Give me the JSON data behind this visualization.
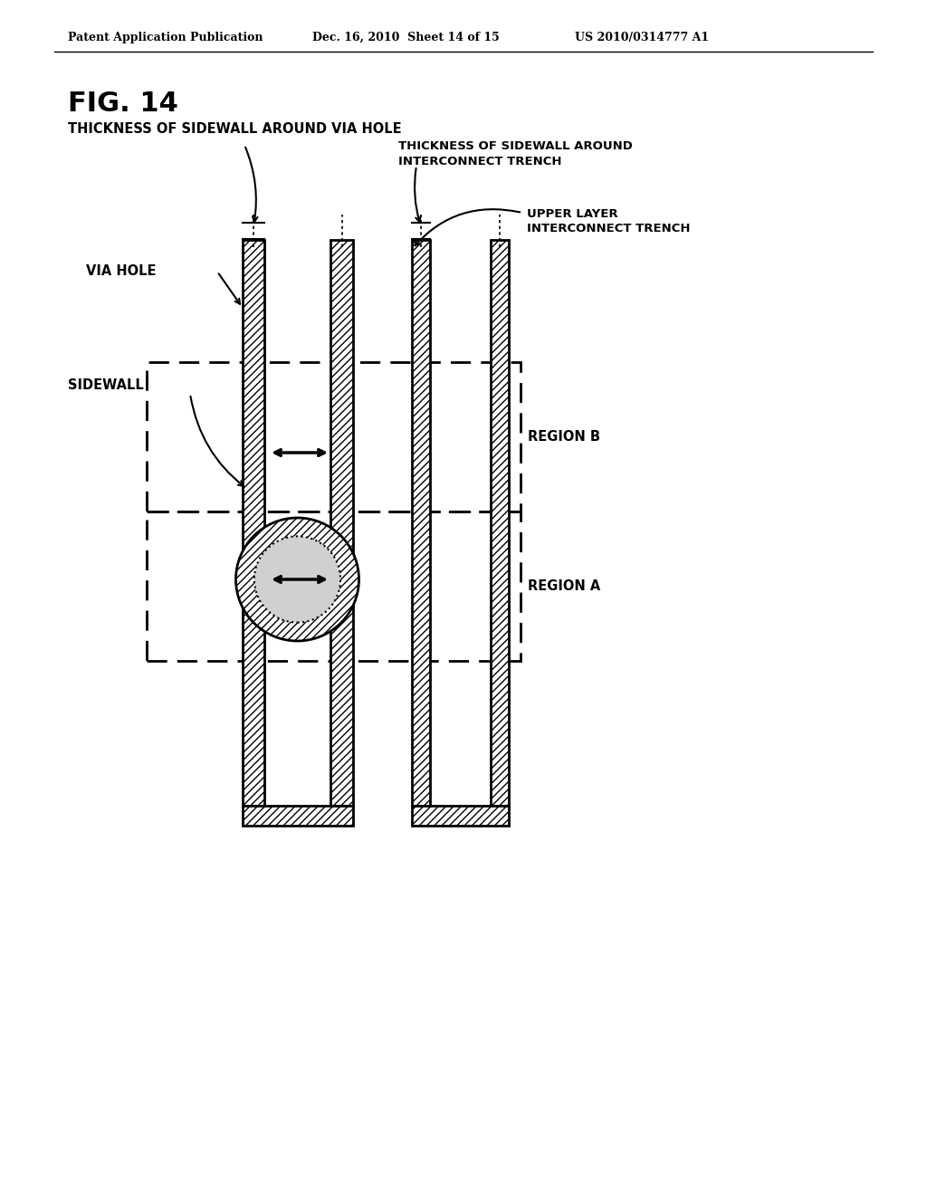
{
  "fig_label": "FIG. 14",
  "header_left": "Patent Application Publication",
  "header_mid": "Dec. 16, 2010  Sheet 14 of 15",
  "header_right": "US 2010/0314777 A1",
  "title1": "THICKNESS OF SIDEWALL AROUND VIA HOLE",
  "title2": "THICKNESS OF SIDEWALL AROUND\nINTERCONNECT TRENCH",
  "label_upper_layer": "UPPER LAYER\nINTERCONNECT TRENCH",
  "label_via_hole": "VIA HOLE",
  "label_sidewall": "SIDEWALL",
  "label_region_a": "REGION A",
  "label_region_b": "REGION B",
  "bg_color": "#ffffff",
  "line_color": "#000000"
}
